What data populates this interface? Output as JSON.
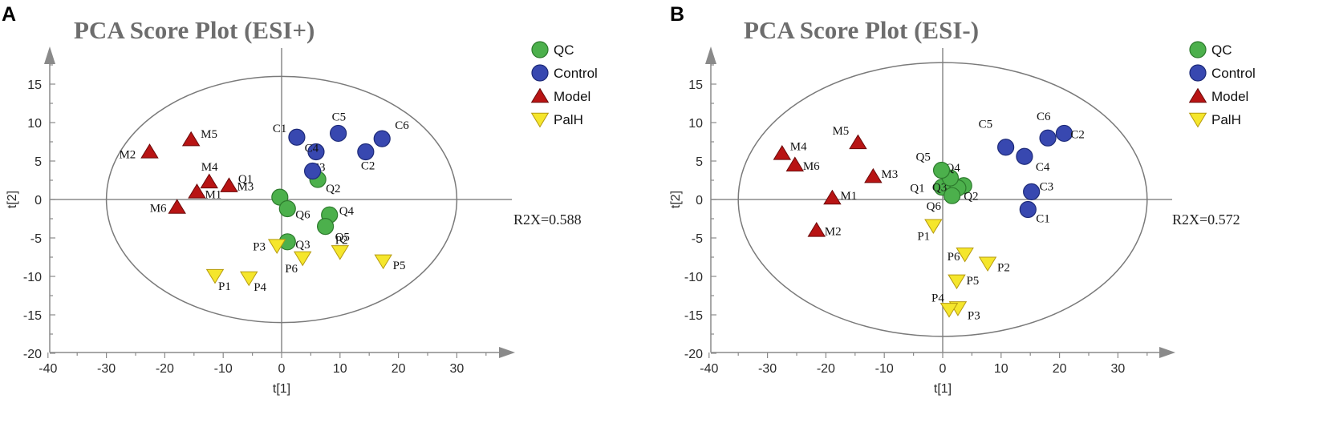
{
  "chart_data": [
    {
      "type": "scatter",
      "panel_label": "A",
      "title": "PCA Score Plot (ESI+)",
      "xlabel": "t[1]",
      "ylabel": "t[2]",
      "xlim": [
        -40,
        35
      ],
      "ylim": [
        -20,
        18
      ],
      "xticks": [
        -40,
        -30,
        -20,
        -10,
        0,
        10,
        20,
        30
      ],
      "yticks": [
        -20,
        -15,
        -10,
        -5,
        0,
        5,
        10,
        15
      ],
      "ellipse": {
        "cx": 0,
        "cy": 0,
        "rx": 30,
        "ry": 16
      },
      "annotation": "R2X=0.588",
      "legend": [
        {
          "name": "QC",
          "marker": "circle",
          "color": "#4cb04c"
        },
        {
          "name": "Control",
          "marker": "circle",
          "color": "#3848b0"
        },
        {
          "name": "Model",
          "marker": "triangle-up",
          "color": "#b81414"
        },
        {
          "name": "PalH",
          "marker": "triangle-down",
          "color": "#f5e62c"
        }
      ],
      "series": [
        {
          "name": "QC",
          "points": [
            {
              "label": "Q1",
              "x": -0.3,
              "y": 0.3
            },
            {
              "label": "Q2",
              "x": 6.2,
              "y": 2.6
            },
            {
              "label": "Q3",
              "x": 1.0,
              "y": -5.5
            },
            {
              "label": "Q4",
              "x": 8.2,
              "y": -2.0
            },
            {
              "label": "Q5",
              "x": 7.5,
              "y": -3.5
            },
            {
              "label": "Q6",
              "x": 1.0,
              "y": -1.2
            }
          ]
        },
        {
          "name": "Control",
          "points": [
            {
              "label": "C1",
              "x": 2.6,
              "y": 8.1
            },
            {
              "label": "C2",
              "x": 14.4,
              "y": 6.2
            },
            {
              "label": "C3",
              "x": 5.9,
              "y": 6.2
            },
            {
              "label": "C4",
              "x": 5.3,
              "y": 3.7
            },
            {
              "label": "C5",
              "x": 9.7,
              "y": 8.6
            },
            {
              "label": "C6",
              "x": 17.2,
              "y": 7.9
            }
          ]
        },
        {
          "name": "Model",
          "points": [
            {
              "label": "M1",
              "x": -14.5,
              "y": 1.0
            },
            {
              "label": "M2",
              "x": -22.6,
              "y": 6.2
            },
            {
              "label": "M3",
              "x": -9.0,
              "y": 1.8
            },
            {
              "label": "M4",
              "x": -12.4,
              "y": 2.3
            },
            {
              "label": "M5",
              "x": -15.5,
              "y": 7.8
            },
            {
              "label": "M6",
              "x": -17.9,
              "y": -1.0
            }
          ]
        },
        {
          "name": "PalH",
          "points": [
            {
              "label": "P1",
              "x": -11.4,
              "y": -9.9
            },
            {
              "label": "P2",
              "x": 10.0,
              "y": -6.8
            },
            {
              "label": "P3",
              "x": -0.8,
              "y": -6.0
            },
            {
              "label": "P4",
              "x": -5.6,
              "y": -10.2
            },
            {
              "label": "P5",
              "x": 17.4,
              "y": -8.0
            },
            {
              "label": "P6",
              "x": 3.6,
              "y": -7.6
            }
          ]
        }
      ]
    },
    {
      "type": "scatter",
      "panel_label": "B",
      "title": "PCA Score Plot (ESI-)",
      "xlabel": "t[1]",
      "ylabel": "t[2]",
      "xlim": [
        -40,
        35
      ],
      "ylim": [
        -20,
        18
      ],
      "xticks": [
        -40,
        -30,
        -20,
        -10,
        0,
        10,
        20,
        30
      ],
      "yticks": [
        -20,
        -15,
        -10,
        -5,
        0,
        5,
        10,
        15
      ],
      "ellipse": {
        "cx": 0,
        "cy": 0,
        "rx": 35,
        "ry": 17.8
      },
      "annotation": "R2X=0.572",
      "legend": [
        {
          "name": "QC",
          "marker": "circle",
          "color": "#4cb04c"
        },
        {
          "name": "Control",
          "marker": "circle",
          "color": "#3848b0"
        },
        {
          "name": "Model",
          "marker": "triangle-up",
          "color": "#b81414"
        },
        {
          "name": "PalH",
          "marker": "triangle-down",
          "color": "#f5e62c"
        }
      ],
      "series": [
        {
          "name": "QC",
          "points": [
            {
              "label": "Q1",
              "x": -0.1,
              "y": 1.6
            },
            {
              "label": "Q2",
              "x": 3.6,
              "y": 1.8
            },
            {
              "label": "Q3",
              "x": 2.6,
              "y": 1.5
            },
            {
              "label": "Q4",
              "x": 1.3,
              "y": 2.8
            },
            {
              "label": "Q5",
              "x": -0.2,
              "y": 3.8
            },
            {
              "label": "Q6",
              "x": 1.6,
              "y": 0.5
            }
          ]
        },
        {
          "name": "Control",
          "points": [
            {
              "label": "C1",
              "x": 14.6,
              "y": -1.3
            },
            {
              "label": "C2",
              "x": 20.8,
              "y": 8.6
            },
            {
              "label": "C3",
              "x": 15.2,
              "y": 1.0
            },
            {
              "label": "C4",
              "x": 14.0,
              "y": 5.6
            },
            {
              "label": "C5",
              "x": 10.8,
              "y": 6.8
            },
            {
              "label": "C6",
              "x": 18.0,
              "y": 8.0
            }
          ]
        },
        {
          "name": "Model",
          "points": [
            {
              "label": "M1",
              "x": -18.9,
              "y": 0.2
            },
            {
              "label": "M2",
              "x": -21.6,
              "y": -4.0
            },
            {
              "label": "M3",
              "x": -11.9,
              "y": 3.0
            },
            {
              "label": "M4",
              "x": -27.5,
              "y": 6.0
            },
            {
              "label": "M5",
              "x": -14.5,
              "y": 7.4
            },
            {
              "label": "M6",
              "x": -25.3,
              "y": 4.5
            }
          ]
        },
        {
          "name": "PalH",
          "points": [
            {
              "label": "P1",
              "x": -1.6,
              "y": -3.4
            },
            {
              "label": "P2",
              "x": 7.7,
              "y": -8.3
            },
            {
              "label": "P3",
              "x": 2.6,
              "y": -14.1
            },
            {
              "label": "P4",
              "x": 1.1,
              "y": -14.3
            },
            {
              "label": "P5",
              "x": 2.4,
              "y": -10.6
            },
            {
              "label": "P6",
              "x": 3.8,
              "y": -7.1
            }
          ]
        }
      ]
    }
  ]
}
